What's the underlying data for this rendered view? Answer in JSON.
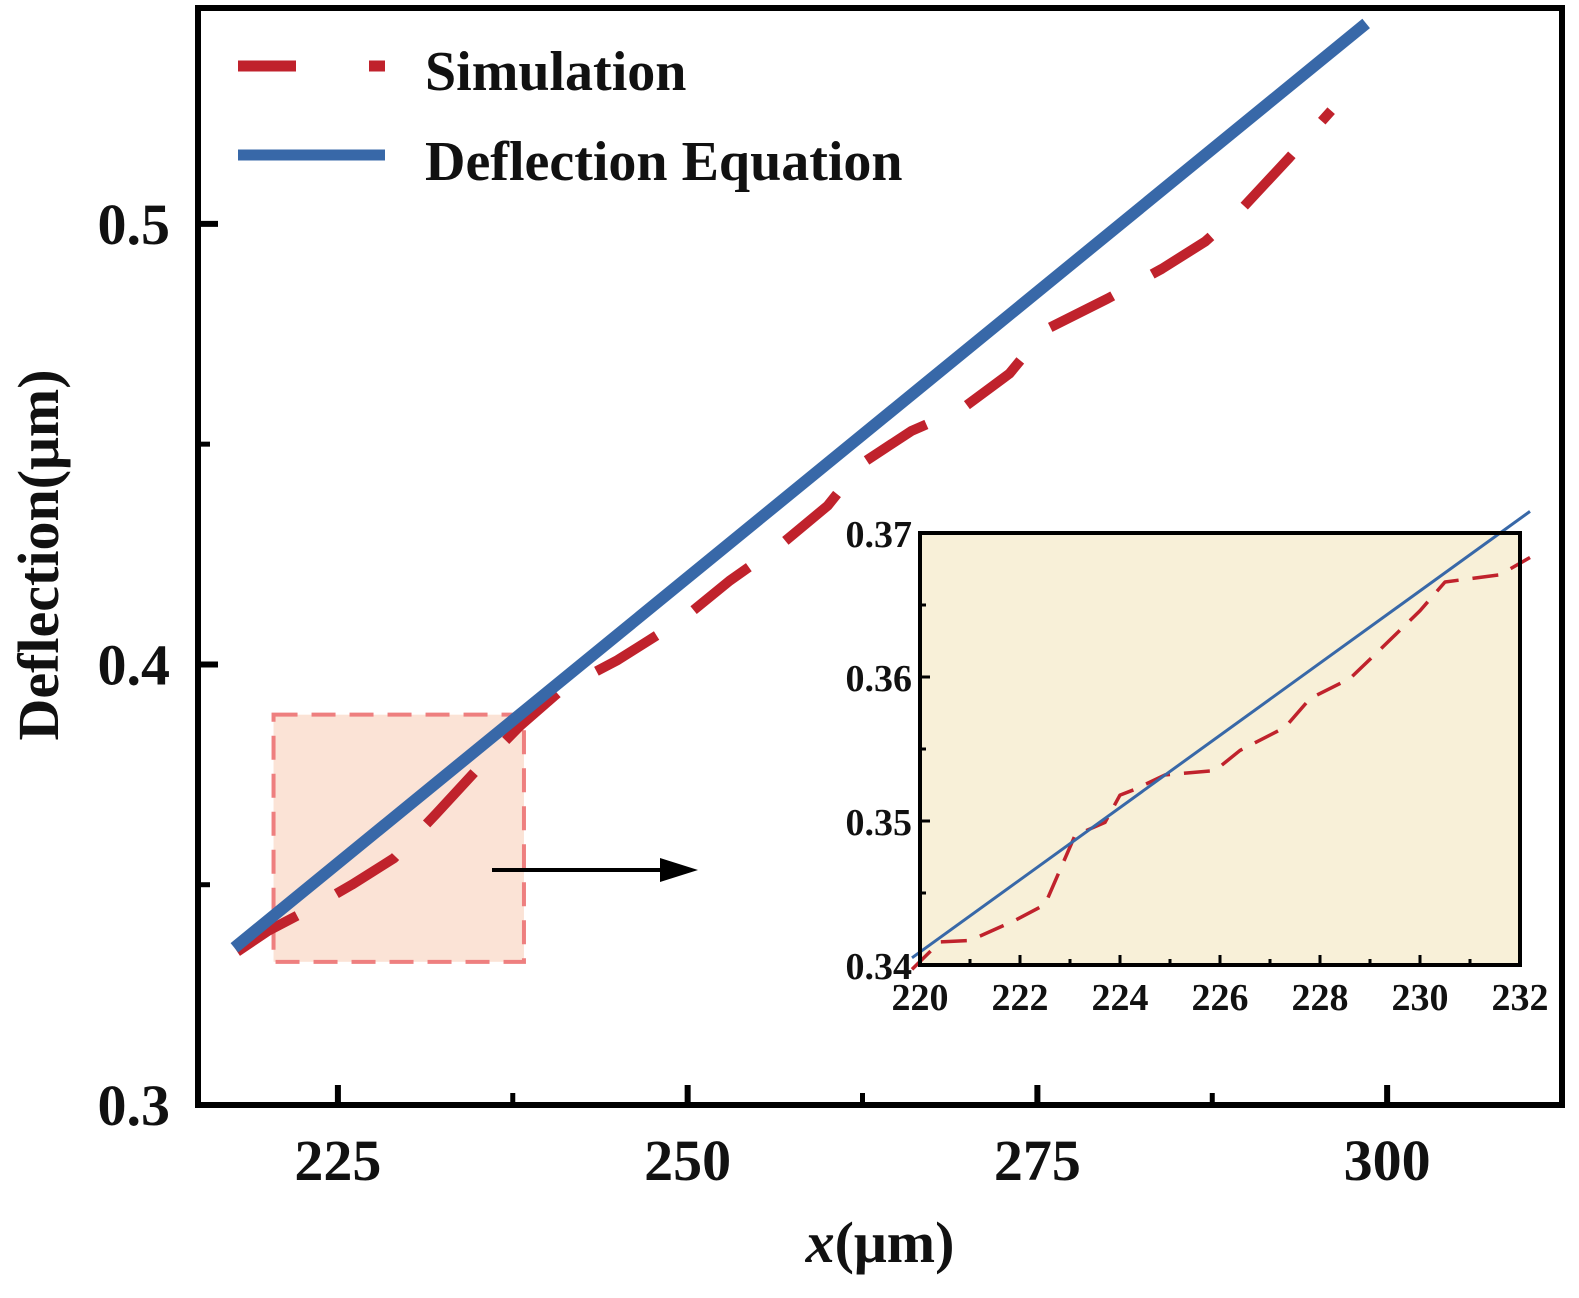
{
  "chart_data": [
    {
      "type": "line",
      "xlabel_italic": "x",
      "xlabel_rest": "(μm)",
      "ylabel": "Deflection(μm)",
      "xlim": [
        215,
        312.5
      ],
      "ylim": [
        0.3,
        0.549
      ],
      "x_ticks": [
        225,
        250,
        275,
        300
      ],
      "x_tick_labels": [
        "225",
        "250",
        "275",
        "300"
      ],
      "y_ticks": [
        0.3,
        0.4,
        0.5
      ],
      "y_tick_labels": [
        "0.3",
        "0.4",
        "0.5"
      ],
      "legend_position": "top-left",
      "grid": false,
      "series": [
        {
          "name": "Simulation",
          "style": "dashed",
          "color": "#c0222c",
          "x": [
            217.8,
            220,
            223,
            226,
            229,
            232,
            234.9,
            238,
            241,
            245,
            249.6,
            253,
            256.7,
            260,
            262.4,
            266,
            269.6,
            273,
            275.6,
            280,
            283.9,
            287,
            289.6,
            293,
            296
          ],
          "y": [
            0.3348,
            0.3395,
            0.3445,
            0.35,
            0.356,
            0.366,
            0.376,
            0.386,
            0.3943,
            0.401,
            0.4102,
            0.419,
            0.4273,
            0.436,
            0.4455,
            0.453,
            0.458,
            0.466,
            0.476,
            0.483,
            0.4898,
            0.496,
            0.5034,
            0.515,
            0.5257
          ]
        },
        {
          "name": "Deflection Equation",
          "style": "solid",
          "color": "#3868a8",
          "x": [
            217.6,
            298.5
          ],
          "y": [
            0.3357,
            0.5455
          ]
        }
      ],
      "zoom_region": {
        "x": [
          220.4,
          238.3
        ],
        "y": [
          0.3325,
          0.3886
        ],
        "fill": "#fbe3d6",
        "stroke": "#ee7f7f"
      }
    },
    {
      "type": "line",
      "inset": true,
      "xlim": [
        220,
        232
      ],
      "ylim": [
        0.34,
        0.37
      ],
      "x_ticks": [
        220,
        222,
        224,
        226,
        228,
        230,
        232
      ],
      "x_tick_labels": [
        "220",
        "222",
        "224",
        "226",
        "228",
        "230",
        "232"
      ],
      "y_ticks": [
        0.34,
        0.35,
        0.36,
        0.37
      ],
      "y_tick_labels": [
        "0.34",
        "0.35",
        "0.36",
        "0.37"
      ],
      "background": "#f8f0d8",
      "series": [
        {
          "style": "dashed",
          "color": "#c0222c",
          "x": [
            219.84,
            220.4,
            221,
            221.9,
            222.5,
            223.1,
            223.7,
            224,
            224.3,
            224.9,
            225.9,
            226.4,
            227.3,
            227.8,
            228.6,
            229.2,
            230,
            230.5,
            231.6,
            232.2
          ],
          "y": [
            0.3397,
            0.3416,
            0.3417,
            0.3431,
            0.3442,
            0.349,
            0.3499,
            0.3518,
            0.3522,
            0.3532,
            0.3535,
            0.3549,
            0.3565,
            0.3585,
            0.3599,
            0.3619,
            0.3646,
            0.3666,
            0.3671,
            0.3683
          ]
        },
        {
          "style": "solid",
          "color": "#3868a8",
          "x": [
            219.84,
            232.2
          ],
          "y": [
            0.3405,
            0.3715
          ]
        }
      ]
    }
  ]
}
